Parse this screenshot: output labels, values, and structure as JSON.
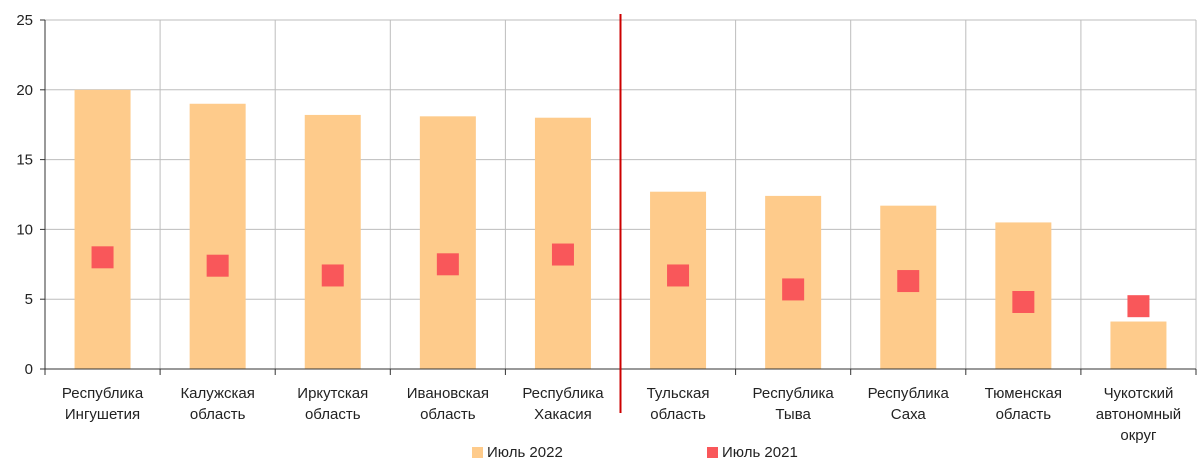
{
  "chart_data": {
    "type": "bar",
    "categories": [
      [
        "Республика",
        "Ингушетия"
      ],
      [
        "Калужская",
        "область"
      ],
      [
        "Иркутская",
        "область"
      ],
      [
        "Ивановская",
        "область"
      ],
      [
        "Республика",
        "Хакасия"
      ],
      [
        "Тульская",
        "область"
      ],
      [
        "Республика",
        "Тыва"
      ],
      [
        "Республика",
        "Саха"
      ],
      [
        "Тюменская",
        "область"
      ],
      [
        "Чукотский",
        "автономный",
        "округ"
      ]
    ],
    "series": [
      {
        "name": "Июль 2022",
        "kind": "bar",
        "color": "#FECB8B",
        "values": [
          20.0,
          19.0,
          18.2,
          18.1,
          18.0,
          12.7,
          12.4,
          11.7,
          10.5,
          3.4
        ]
      },
      {
        "name": "Июль 2021",
        "kind": "marker",
        "color": "#F9575A",
        "values": [
          8.0,
          7.4,
          6.7,
          7.5,
          8.2,
          6.7,
          5.7,
          6.3,
          4.8,
          4.5
        ]
      }
    ],
    "yticks": [
      0,
      5,
      10,
      15,
      20,
      25
    ],
    "ylim": [
      0,
      25
    ],
    "grid": true,
    "legend_position": "bottom-center",
    "divider": {
      "after_category_index": 4,
      "color": "#CC0000"
    }
  }
}
